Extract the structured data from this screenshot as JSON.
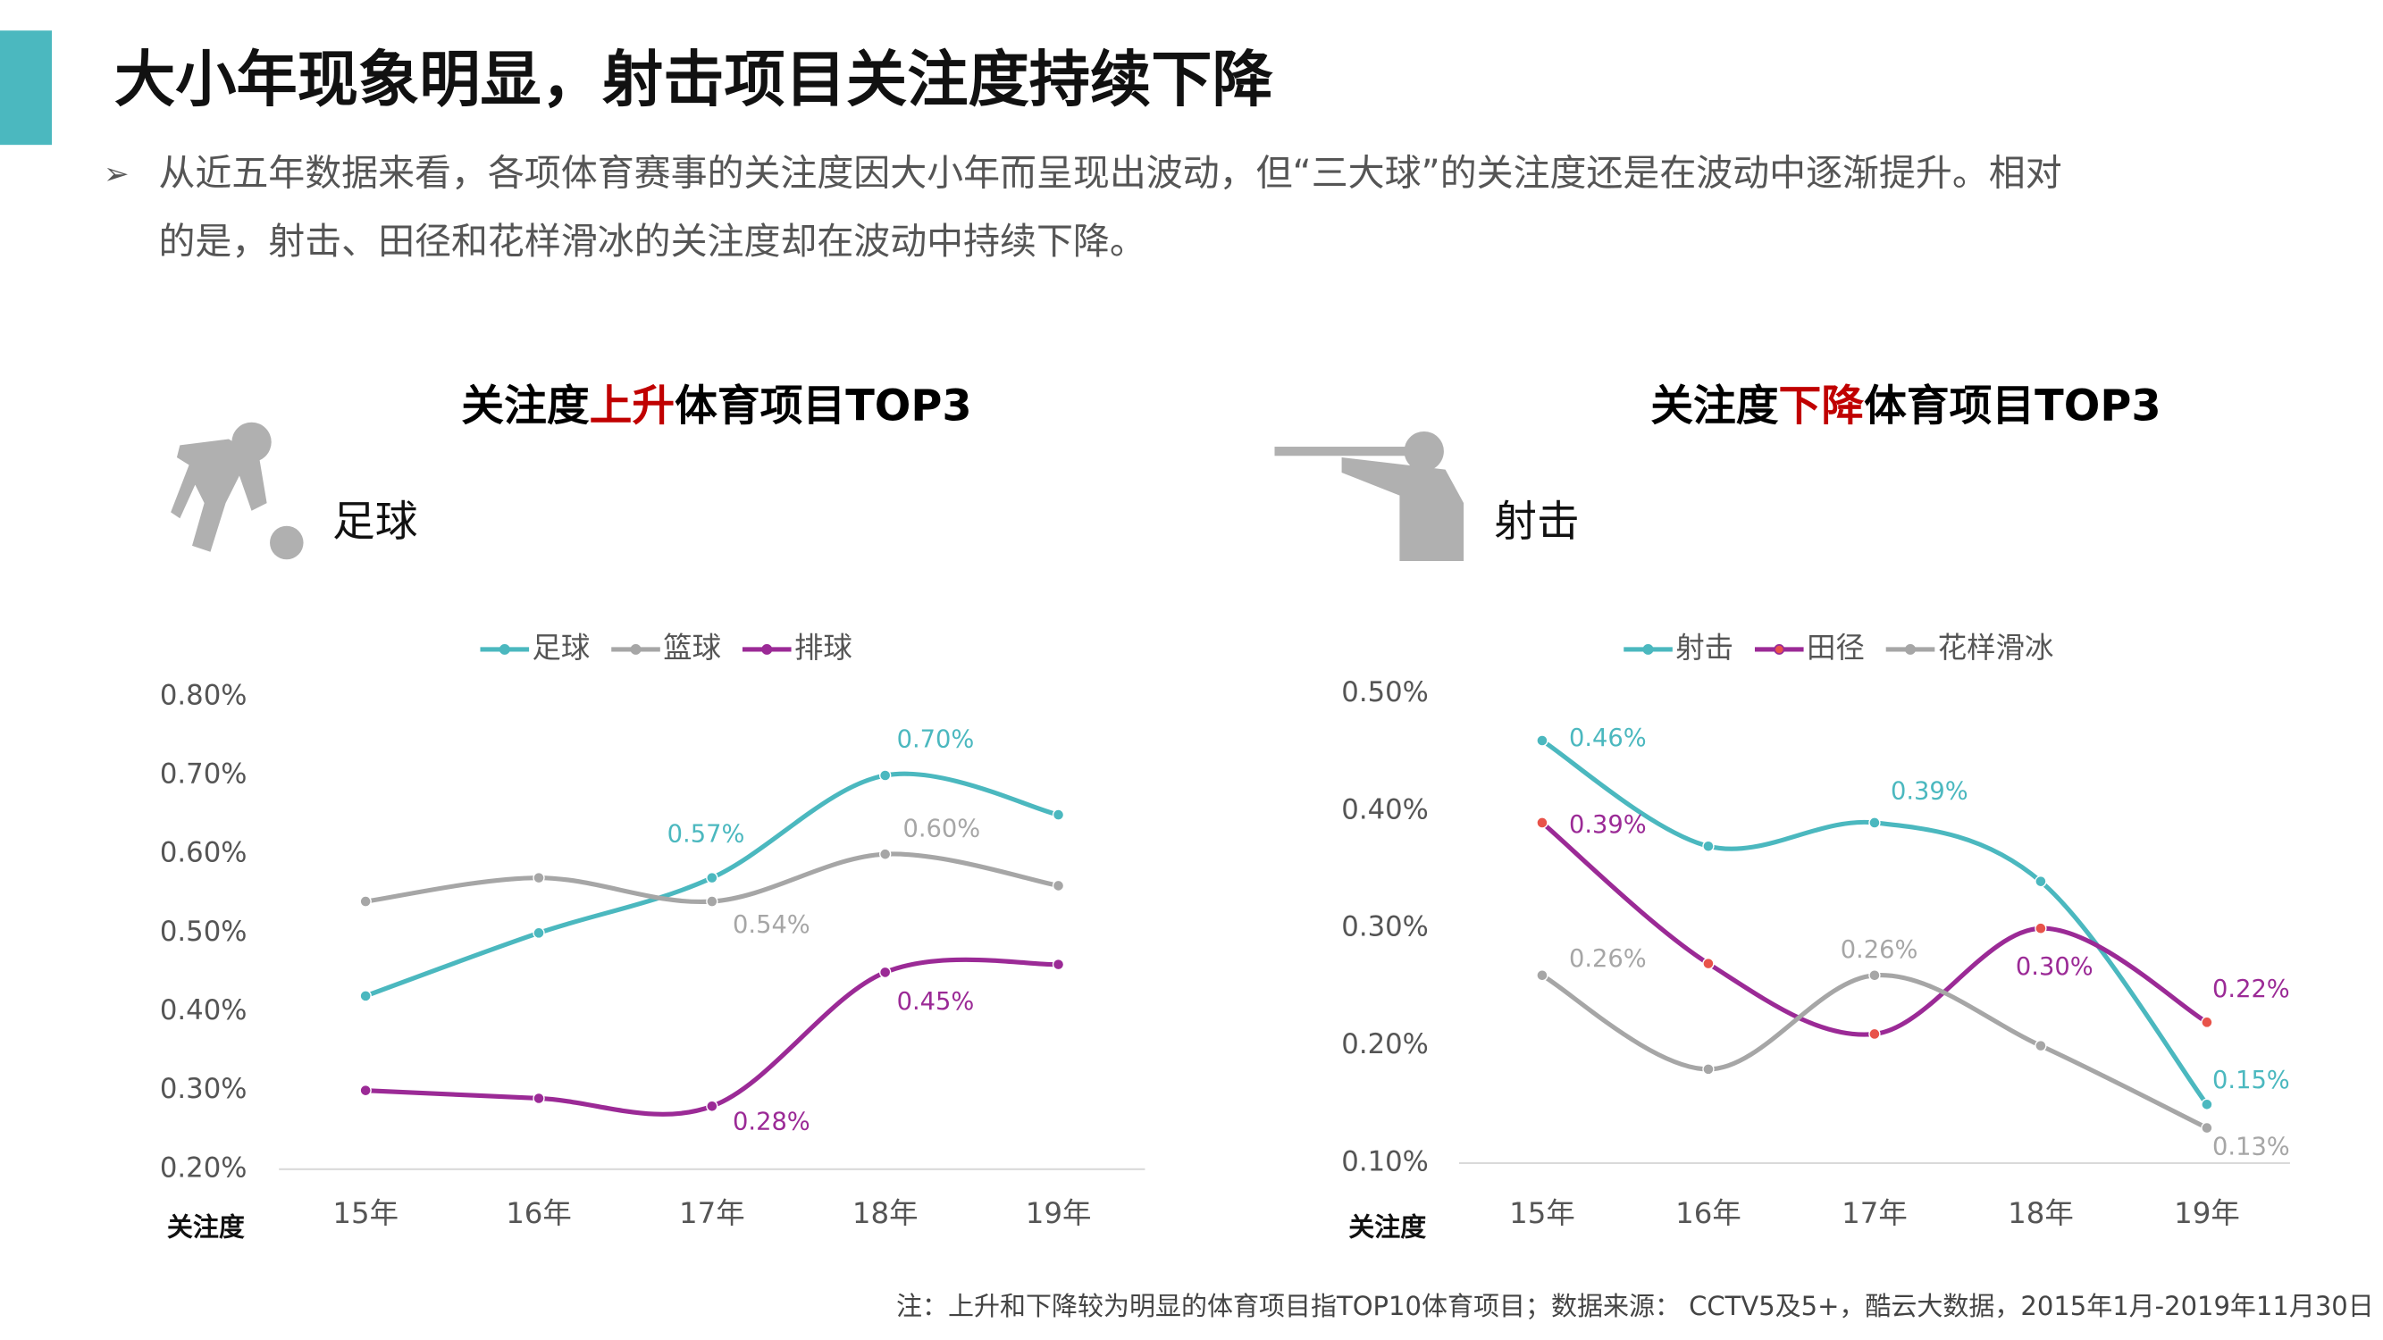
{
  "header": {
    "title": "大小年现象明显，射击项目关注度持续下降"
  },
  "summary": [
    "从近五年数据来看，各项体育赛事的关注度因大小年而呈现出波动，但“三大球”的关注度还是在波动中逐渐提升。相对",
    "的是，射击、田径和花样滑冰的关注度却在波动中持续下降。"
  ],
  "chart_data": [
    {
      "type": "line",
      "title_parts": [
        {
          "text": "关注度",
          "color": "#000000"
        },
        {
          "text": "上升",
          "color": "#c00000"
        },
        {
          "text": "体育项目TOP3",
          "color": "#000000"
        }
      ],
      "icon_label": "足球",
      "y_label": "关注度",
      "categories": [
        "15年",
        "16年",
        "17年",
        "18年",
        "19年"
      ],
      "ylim": [
        0.2,
        0.8
      ],
      "yticks": [
        {
          "value": 0.2,
          "label": "0.20%"
        },
        {
          "value": 0.3,
          "label": "0.30%"
        },
        {
          "value": 0.4,
          "label": "0.40%"
        },
        {
          "value": 0.5,
          "label": "0.50%"
        },
        {
          "value": 0.6,
          "label": "0.60%"
        },
        {
          "value": 0.7,
          "label": "0.70%"
        },
        {
          "value": 0.8,
          "label": "0.80%"
        }
      ],
      "series": [
        {
          "name": "足球",
          "color": "#4bb8bf",
          "values": [
            0.42,
            0.5,
            0.57,
            0.7,
            0.65
          ],
          "value_labels": [
            null,
            null,
            "0.57%",
            "0.70%",
            null
          ]
        },
        {
          "name": "篮球",
          "color": "#a6a6a6",
          "values": [
            0.54,
            0.57,
            0.54,
            0.6,
            0.56
          ],
          "value_labels": [
            null,
            null,
            "0.54%",
            "0.60%",
            null
          ]
        },
        {
          "name": "排球",
          "color": "#9b2a96",
          "values": [
            0.3,
            0.29,
            0.28,
            0.45,
            0.46
          ],
          "value_labels": [
            null,
            null,
            "0.28%",
            "0.45%",
            null
          ]
        }
      ]
    },
    {
      "type": "line",
      "title_parts": [
        {
          "text": "关注度",
          "color": "#000000"
        },
        {
          "text": "下降",
          "color": "#c00000"
        },
        {
          "text": "体育项目TOP3",
          "color": "#000000"
        }
      ],
      "icon_label": "射击",
      "y_label": "关注度",
      "categories": [
        "15年",
        "16年",
        "17年",
        "18年",
        "19年"
      ],
      "ylim": [
        0.1,
        0.5
      ],
      "yticks": [
        {
          "value": 0.1,
          "label": "0.10%"
        },
        {
          "value": 0.2,
          "label": "0.20%"
        },
        {
          "value": 0.3,
          "label": "0.30%"
        },
        {
          "value": 0.4,
          "label": "0.40%"
        },
        {
          "value": 0.5,
          "label": "0.50%"
        }
      ],
      "series": [
        {
          "name": "射击",
          "color": "#4bb8bf",
          "values": [
            0.46,
            0.37,
            0.39,
            0.34,
            0.15
          ],
          "value_labels": [
            "0.46%",
            null,
            "0.39%",
            null,
            "0.15%"
          ]
        },
        {
          "name": "田径",
          "color": "#9b2a96",
          "marker_color": "#e8534a",
          "values": [
            0.39,
            0.27,
            0.21,
            0.3,
            0.22
          ],
          "value_labels": [
            "0.39%",
            null,
            null,
            "0.30%",
            "0.22%"
          ]
        },
        {
          "name": "花样滑冰",
          "color": "#a6a6a6",
          "values": [
            0.26,
            0.18,
            0.26,
            0.2,
            0.13
          ],
          "value_labels": [
            "0.26%",
            null,
            "0.26%",
            null,
            "0.13%"
          ]
        }
      ]
    }
  ],
  "footnote": "注：上升和下降较为明显的体育项目指TOP10体育项目；数据来源： CCTV5及5+，酷云大数据，2015年1月-2019年11月30日"
}
